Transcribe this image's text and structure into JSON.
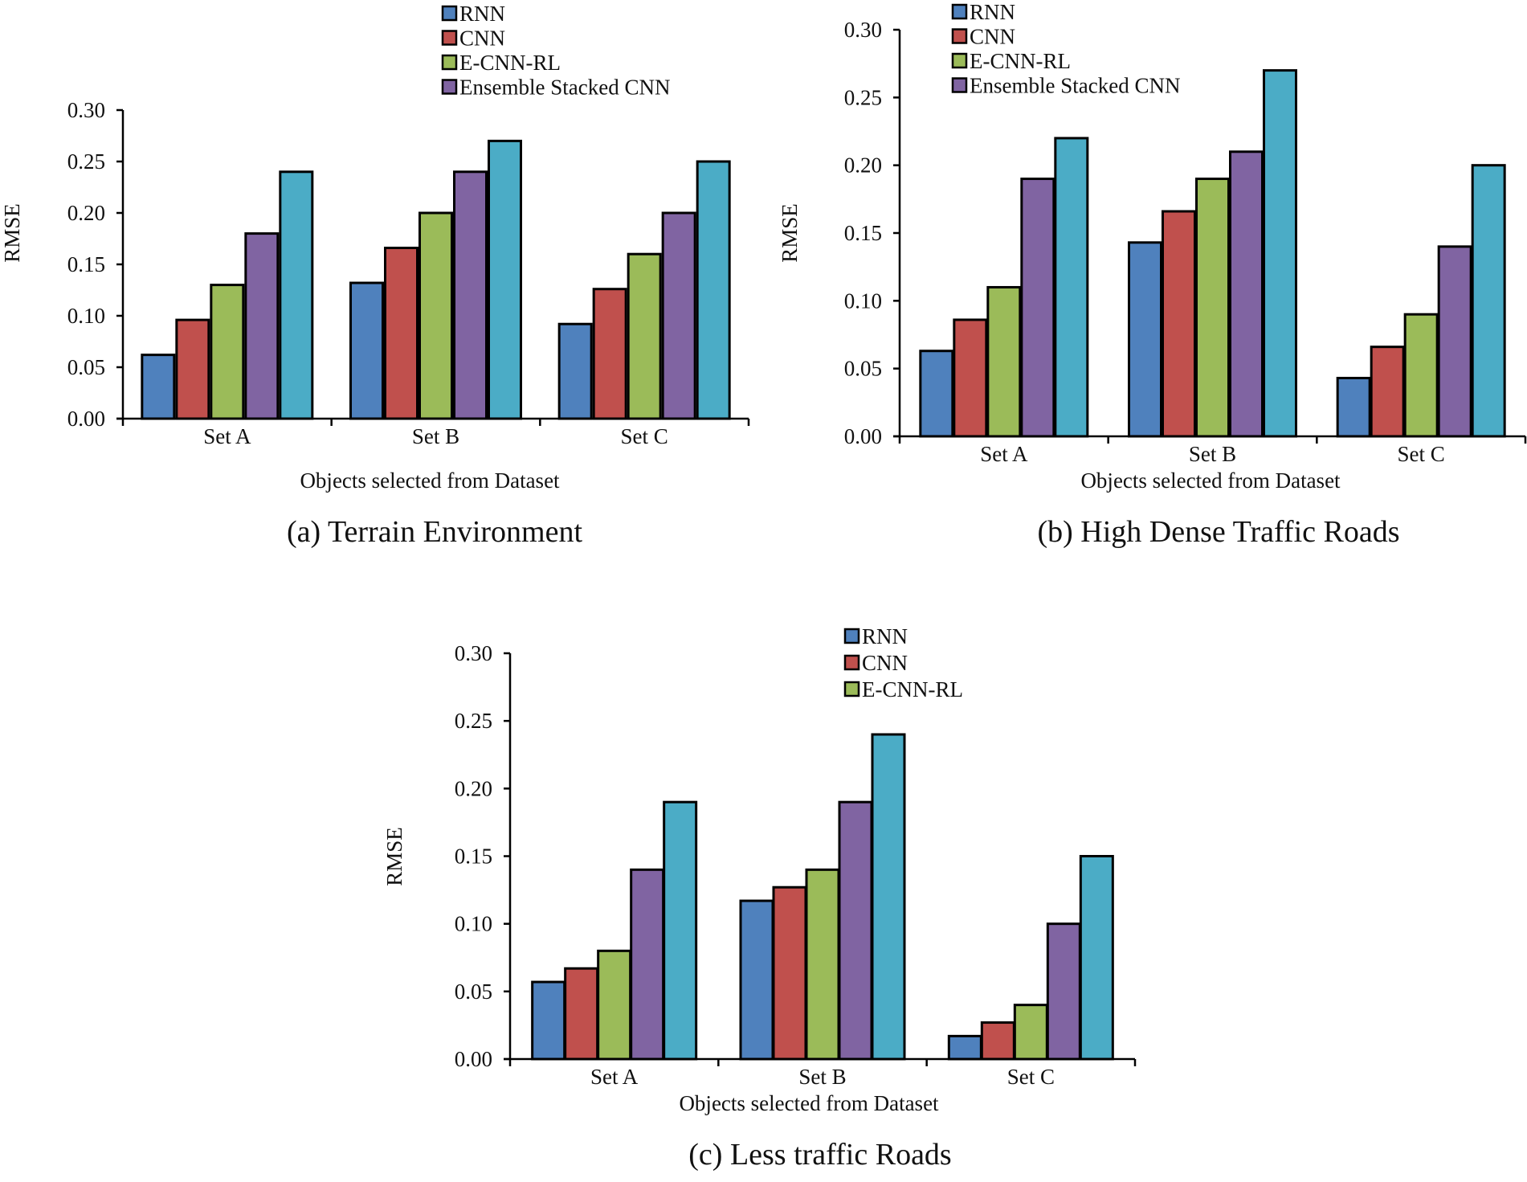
{
  "figure": {
    "colors": {
      "RNN": "#4f81bd",
      "CNN": "#c0504d",
      "E-CNN-RL": "#9bbb59",
      "Ensemble Stacked CNN": "#8064a2",
      "series5": "#4bacc6"
    }
  },
  "chart_data": [
    {
      "id": "a",
      "type": "bar",
      "caption": "(a) Terrain Environment",
      "xlabel": "Objects selected from Dataset",
      "ylabel": "RMSE",
      "ylim": [
        0,
        0.3
      ],
      "yticks": [
        "0.00",
        "0.05",
        "0.10",
        "0.15",
        "0.20",
        "0.25",
        "0.30"
      ],
      "categories": [
        "Set A",
        "Set B",
        "Set C"
      ],
      "legend": [
        "RNN",
        "CNN",
        "E-CNN-RL",
        "Ensemble Stacked CNN"
      ],
      "legend_position": "top",
      "series": [
        {
          "name": "RNN",
          "values": [
            0.062,
            0.132,
            0.092
          ]
        },
        {
          "name": "CNN",
          "values": [
            0.096,
            0.166,
            0.126
          ]
        },
        {
          "name": "E-CNN-RL",
          "values": [
            0.13,
            0.2,
            0.16
          ]
        },
        {
          "name": "Ensemble Stacked CNN",
          "values": [
            0.18,
            0.24,
            0.2
          ]
        },
        {
          "name": "",
          "values": [
            0.24,
            0.27,
            0.25
          ]
        }
      ]
    },
    {
      "id": "b",
      "type": "bar",
      "caption": "(b) High Dense Traffic Roads",
      "xlabel": "Objects selected from Dataset",
      "ylabel": "RMSE",
      "ylim": [
        0,
        0.3
      ],
      "yticks": [
        "0.00",
        "0.05",
        "0.10",
        "0.15",
        "0.20",
        "0.25",
        "0.30"
      ],
      "categories": [
        "Set A",
        "Set B",
        "Set C"
      ],
      "legend": [
        "RNN",
        "CNN",
        "E-CNN-RL",
        "Ensemble Stacked CNN"
      ],
      "legend_position": "top-left",
      "series": [
        {
          "name": "RNN",
          "values": [
            0.063,
            0.143,
            0.043
          ]
        },
        {
          "name": "CNN",
          "values": [
            0.086,
            0.166,
            0.066
          ]
        },
        {
          "name": "E-CNN-RL",
          "values": [
            0.11,
            0.19,
            0.09
          ]
        },
        {
          "name": "Ensemble Stacked CNN",
          "values": [
            0.19,
            0.21,
            0.14
          ]
        },
        {
          "name": "",
          "values": [
            0.22,
            0.27,
            0.2
          ]
        }
      ]
    },
    {
      "id": "c",
      "type": "bar",
      "caption": "(c) Less traffic Roads",
      "xlabel": "Objects selected from Dataset",
      "ylabel": "RMSE",
      "ylim": [
        0,
        0.3
      ],
      "yticks": [
        "0.00",
        "0.05",
        "0.10",
        "0.15",
        "0.20",
        "0.25",
        "0.30"
      ],
      "categories": [
        "Set A",
        "Set B",
        "Set C"
      ],
      "legend": [
        "RNN",
        "CNN",
        "E-CNN-RL"
      ],
      "legend_position": "top",
      "series": [
        {
          "name": "RNN",
          "values": [
            0.057,
            0.117,
            0.017
          ]
        },
        {
          "name": "CNN",
          "values": [
            0.067,
            0.127,
            0.027
          ]
        },
        {
          "name": "E-CNN-RL",
          "values": [
            0.08,
            0.14,
            0.04
          ]
        },
        {
          "name": "",
          "values": [
            0.14,
            0.19,
            0.1
          ]
        },
        {
          "name": "",
          "values": [
            0.19,
            0.24,
            0.15
          ]
        }
      ]
    }
  ]
}
